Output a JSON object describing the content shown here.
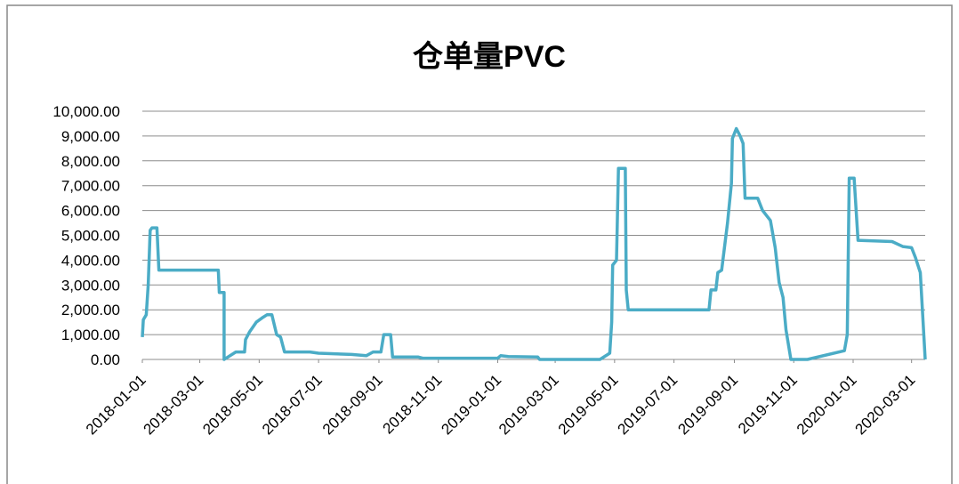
{
  "chart_data": {
    "type": "line",
    "title": "仓单量PVC",
    "x": [
      "2018-01-01",
      "2018-01-02",
      "2018-01-05",
      "2018-01-07",
      "2018-01-09",
      "2018-01-11",
      "2018-01-16",
      "2018-01-18",
      "2018-03-20",
      "2018-03-21",
      "2018-03-26",
      "2018-03-26",
      "2018-04-07",
      "2018-04-16",
      "2018-04-17",
      "2018-04-21",
      "2018-04-28",
      "2018-05-05",
      "2018-05-09",
      "2018-05-14",
      "2018-05-19",
      "2018-05-23",
      "2018-05-27",
      "2018-06-22",
      "2018-07-01",
      "2018-08-04",
      "2018-08-19",
      "2018-08-26",
      "2018-09-03",
      "2018-09-06",
      "2018-09-13",
      "2018-09-15",
      "2018-10-11",
      "2018-10-16",
      "2019-01-01",
      "2019-01-04",
      "2019-01-12",
      "2019-02-11",
      "2019-02-13",
      "2019-04-16",
      "2019-04-26",
      "2019-04-28",
      "2019-04-29",
      "2019-05-03",
      "2019-05-05",
      "2019-05-12",
      "2019-05-13",
      "2019-05-15",
      "2019-08-06",
      "2019-08-08",
      "2019-08-13",
      "2019-08-15",
      "2019-08-19",
      "2019-08-25",
      "2019-08-29",
      "2019-08-30",
      "2019-09-03",
      "2019-09-07",
      "2019-09-10",
      "2019-09-12",
      "2019-09-25",
      "2019-09-30",
      "2019-10-08",
      "2019-10-13",
      "2019-10-17",
      "2019-10-21",
      "2019-10-24",
      "2019-10-29",
      "2019-11-15",
      "2019-12-23",
      "2019-12-26",
      "2019-12-28",
      "2020-01-02",
      "2020-01-06",
      "2020-02-10",
      "2020-02-21",
      "2020-03-01",
      "2020-03-05",
      "2020-03-10",
      "2020-03-15"
    ],
    "series": [
      {
        "name": "仓单量PVC",
        "color": "#4bacc6",
        "values": [
          900,
          1600,
          1800,
          3000,
          5200,
          5300,
          5300,
          3600,
          3600,
          2700,
          2700,
          0,
          300,
          300,
          800,
          1100,
          1500,
          1700,
          1800,
          1800,
          1000,
          900,
          300,
          300,
          250,
          200,
          150,
          300,
          300,
          1000,
          1000,
          100,
          100,
          50,
          50,
          150,
          120,
          100,
          0,
          0,
          250,
          1500,
          3800,
          4000,
          7700,
          7700,
          2800,
          2000,
          2000,
          2800,
          2800,
          3500,
          3600,
          5500,
          7100,
          8900,
          9300,
          9000,
          8700,
          6500,
          6500,
          6000,
          5600,
          4500,
          3100,
          2500,
          1200,
          0,
          0,
          350,
          1000,
          7300,
          7300,
          4800,
          4750,
          4550,
          4500,
          4100,
          3500,
          0
        ]
      }
    ],
    "xlim": [
      "2018-01-01",
      "2020-03-15"
    ],
    "xticks": [
      "2018-01-01",
      "2018-03-01",
      "2018-05-01",
      "2018-07-01",
      "2018-09-01",
      "2018-11-01",
      "2019-01-01",
      "2019-03-01",
      "2019-05-01",
      "2019-07-01",
      "2019-09-01",
      "2019-11-01",
      "2020-01-01",
      "2020-03-01"
    ],
    "ylim": [
      0,
      10000
    ],
    "yticks": [
      {
        "value": 0,
        "label": "0.00"
      },
      {
        "value": 1000,
        "label": "1,000.00"
      },
      {
        "value": 2000,
        "label": "2,000.00"
      },
      {
        "value": 3000,
        "label": "3,000.00"
      },
      {
        "value": 4000,
        "label": "4,000.00"
      },
      {
        "value": 5000,
        "label": "5,000.00"
      },
      {
        "value": 6000,
        "label": "6,000.00"
      },
      {
        "value": 7000,
        "label": "7,000.00"
      },
      {
        "value": 8000,
        "label": "8,000.00"
      },
      {
        "value": 9000,
        "label": "9,000.00"
      },
      {
        "value": 10000,
        "label": "10,000.00"
      }
    ],
    "grid": true
  }
}
